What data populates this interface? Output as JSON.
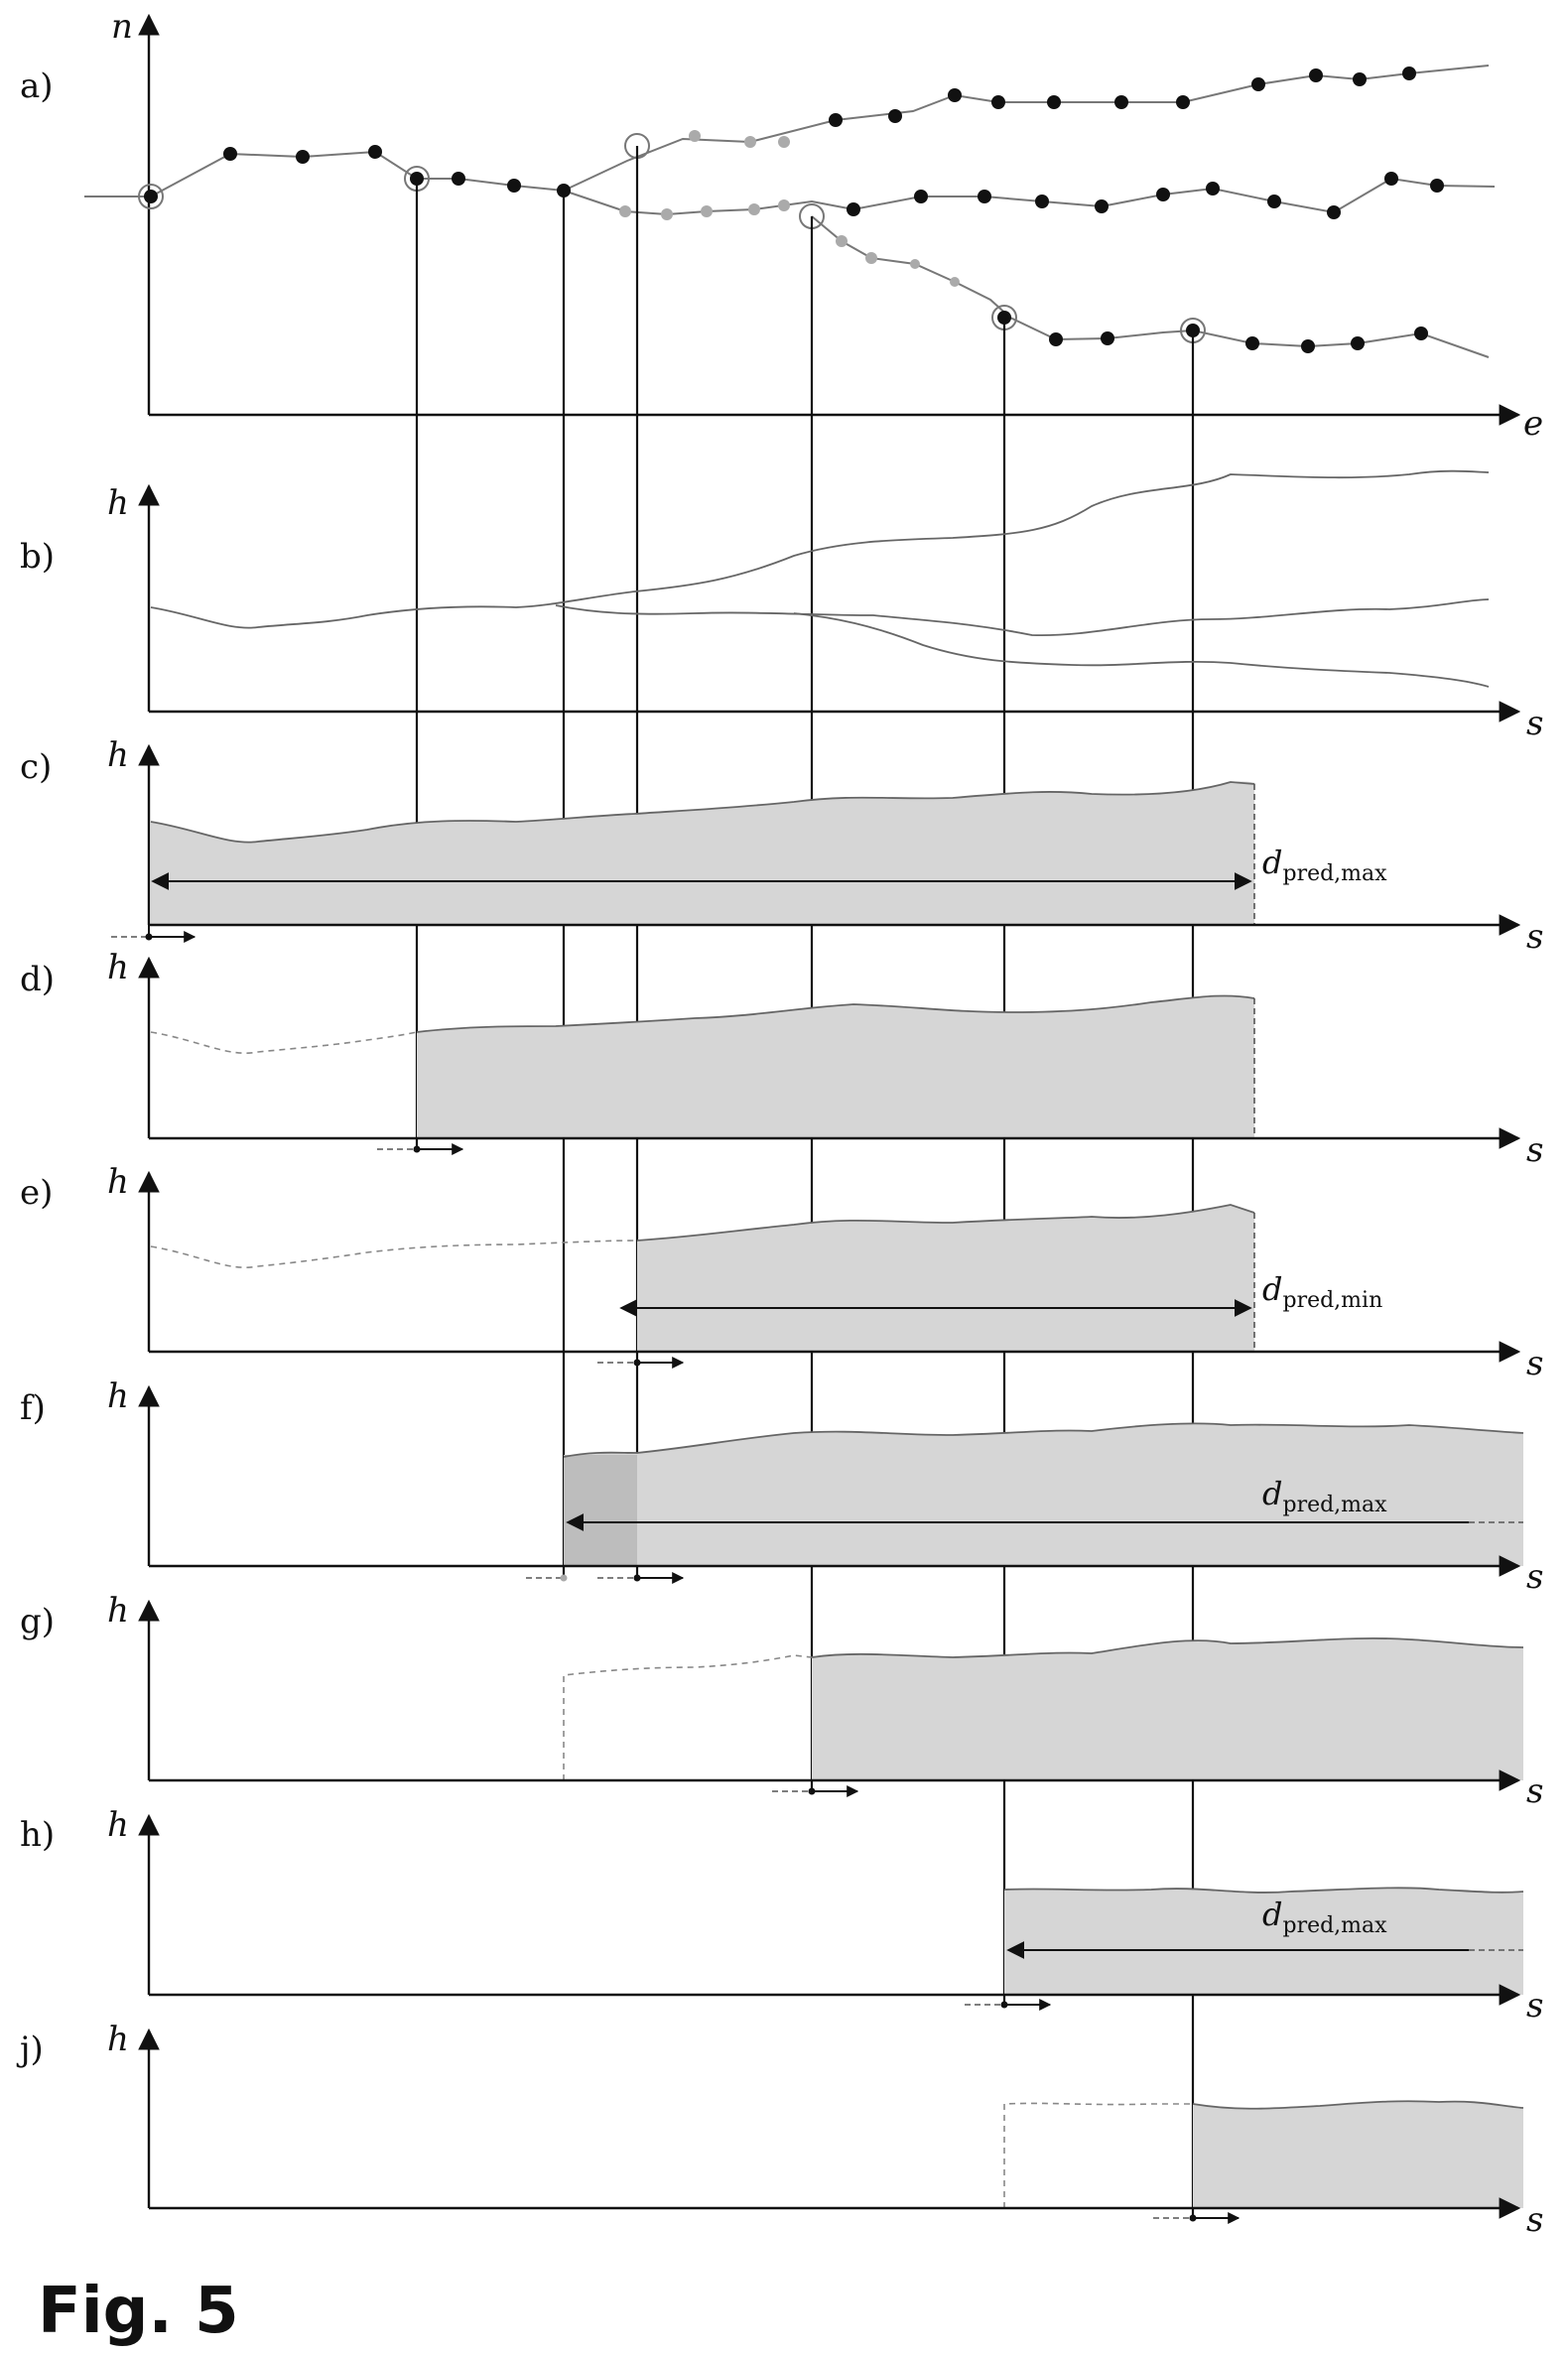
{
  "figure": {
    "caption": "Fig. 5",
    "panels": [
      {
        "id": "a",
        "label": "a)",
        "y_axis": "n",
        "x_axis": "e"
      },
      {
        "id": "b",
        "label": "b)",
        "y_axis": "h",
        "x_axis": "s"
      },
      {
        "id": "c",
        "label": "c)",
        "y_axis": "h",
        "x_axis": "s",
        "dimension": "max"
      },
      {
        "id": "d",
        "label": "d)",
        "y_axis": "h",
        "x_axis": "s"
      },
      {
        "id": "e",
        "label": "e)",
        "y_axis": "h",
        "x_axis": "s",
        "dimension": "min"
      },
      {
        "id": "f",
        "label": "f)",
        "y_axis": "h",
        "x_axis": "s",
        "dimension": "max"
      },
      {
        "id": "g",
        "label": "g)",
        "y_axis": "h",
        "x_axis": "s"
      },
      {
        "id": "h",
        "label": "h)",
        "y_axis": "h",
        "x_axis": "s",
        "dimension": "max"
      },
      {
        "id": "j",
        "label": "j)",
        "y_axis": "h",
        "x_axis": "s"
      }
    ],
    "dimension_labels": {
      "max": {
        "base": "d",
        "sub": "pred,max"
      },
      "min": {
        "base": "d",
        "sub": "pred,min"
      }
    }
  }
}
